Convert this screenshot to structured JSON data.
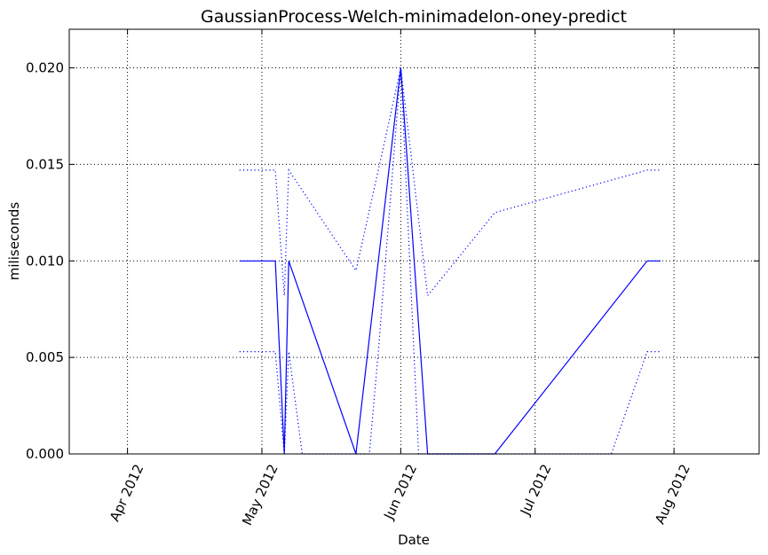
{
  "chart_data": {
    "type": "line",
    "title": "GaussianProcess-Welch-minimadelon-oney-predict",
    "xlabel": "Date",
    "ylabel": "miliseconds",
    "xlim": [
      "2012-03-19",
      "2012-08-20"
    ],
    "ylim": [
      0,
      0.022
    ],
    "grid": true,
    "x_ticks": [
      {
        "date": "2012-04-01",
        "label": "Apr 2012"
      },
      {
        "date": "2012-05-01",
        "label": "May 2012"
      },
      {
        "date": "2012-06-01",
        "label": "Jun 2012"
      },
      {
        "date": "2012-07-01",
        "label": "Jul 2012"
      },
      {
        "date": "2012-08-01",
        "label": "Aug 2012"
      }
    ],
    "y_ticks": [
      {
        "value": 0.0,
        "label": "0.000"
      },
      {
        "value": 0.005,
        "label": "0.005"
      },
      {
        "value": 0.01,
        "label": "0.010"
      },
      {
        "value": 0.015,
        "label": "0.015"
      },
      {
        "value": 0.02,
        "label": "0.020"
      }
    ],
    "series": [
      {
        "style": "solid",
        "color": "#0000ff",
        "points": [
          {
            "x": "2012-04-26",
            "y": 0.01
          },
          {
            "x": "2012-05-04",
            "y": 0.01
          },
          {
            "x": "2012-05-06",
            "y": 0.0
          },
          {
            "x": "2012-05-07",
            "y": 0.01
          },
          {
            "x": "2012-05-22",
            "y": 0.0
          },
          {
            "x": "2012-05-27",
            "y": 0.01
          },
          {
            "x": "2012-06-01",
            "y": 0.02
          },
          {
            "x": "2012-06-07",
            "y": 0.0
          },
          {
            "x": "2012-06-22",
            "y": 0.0
          },
          {
            "x": "2012-07-26",
            "y": 0.01
          },
          {
            "x": "2012-07-29",
            "y": 0.01
          }
        ]
      },
      {
        "style": "dotted",
        "color": "#0000ff",
        "points": [
          {
            "x": "2012-04-26",
            "y": 0.0147
          },
          {
            "x": "2012-05-04",
            "y": 0.0147
          },
          {
            "x": "2012-05-06",
            "y": 0.0082
          },
          {
            "x": "2012-05-07",
            "y": 0.0147
          },
          {
            "x": "2012-05-22",
            "y": 0.0095
          },
          {
            "x": "2012-05-27",
            "y": 0.0147
          },
          {
            "x": "2012-06-01",
            "y": 0.02
          },
          {
            "x": "2012-06-07",
            "y": 0.0082
          },
          {
            "x": "2012-06-22",
            "y": 0.0125
          },
          {
            "x": "2012-07-26",
            "y": 0.0147
          },
          {
            "x": "2012-07-29",
            "y": 0.0147
          }
        ]
      },
      {
        "style": "dotted",
        "color": "#0000ff",
        "points": [
          {
            "x": "2012-04-26",
            "y": 0.0053
          },
          {
            "x": "2012-05-04",
            "y": 0.0053
          },
          {
            "x": "2012-05-06",
            "y": 0.0
          },
          {
            "x": "2012-05-07",
            "y": 0.0053
          },
          {
            "x": "2012-05-10",
            "y": 0.0
          },
          {
            "x": "2012-05-25",
            "y": 0.0
          },
          {
            "x": "2012-05-27",
            "y": 0.0053
          },
          {
            "x": "2012-06-01",
            "y": 0.02
          },
          {
            "x": "2012-06-05",
            "y": 0.0
          },
          {
            "x": "2012-07-18",
            "y": 0.0
          },
          {
            "x": "2012-07-26",
            "y": 0.0053
          },
          {
            "x": "2012-07-29",
            "y": 0.0053
          }
        ]
      }
    ]
  }
}
